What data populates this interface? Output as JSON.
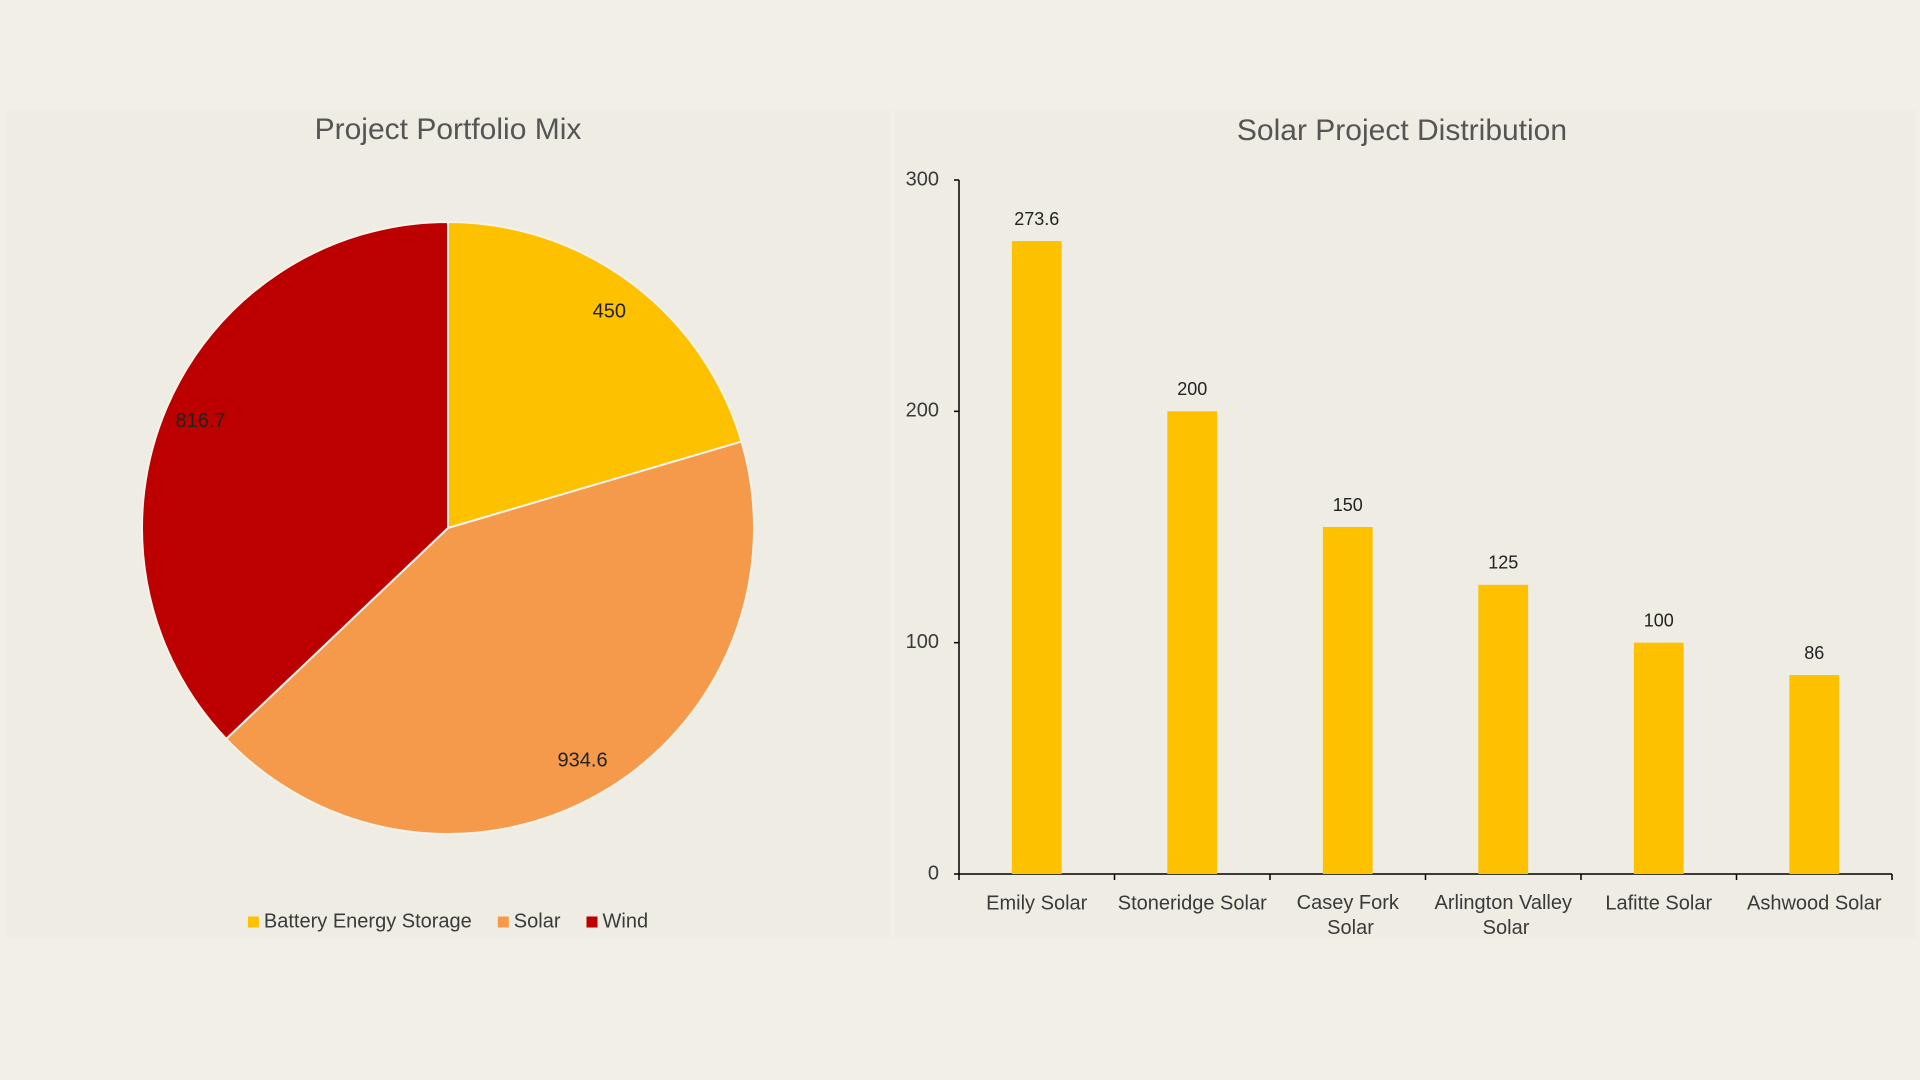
{
  "chart_data": [
    {
      "type": "pie",
      "title": "Project Portfolio Mix",
      "categories": [
        "Battery Energy Storage",
        "Solar",
        "Wind"
      ],
      "values": [
        450,
        934.6,
        816.7
      ],
      "colors": [
        "#FDC100",
        "#F59A4B",
        "#BC0000"
      ],
      "legend": "bottom"
    },
    {
      "type": "bar",
      "title": "Solar Project Distribution",
      "categories": [
        "Emily Solar",
        "Stoneridge Solar",
        "Casey Fork Solar",
        "Arlington Valley Solar",
        "Lafitte Solar",
        "Ashwood Solar"
      ],
      "values": [
        273.6,
        200,
        150,
        125,
        100,
        86
      ],
      "color": "#FDC100",
      "ylim": [
        0,
        300
      ],
      "yticks": [
        0,
        100,
        200,
        300
      ],
      "grid": false
    }
  ]
}
